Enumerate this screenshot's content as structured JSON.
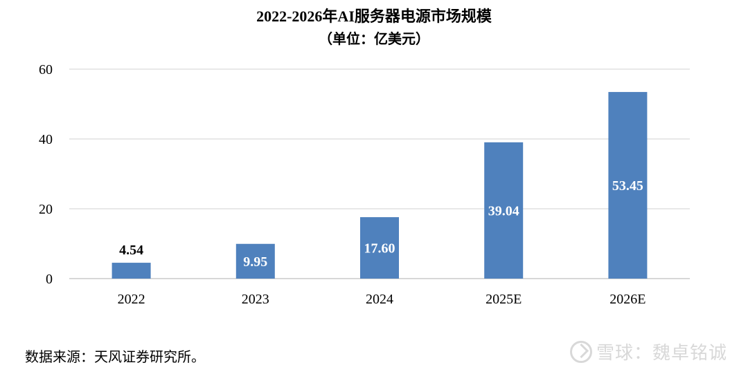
{
  "header": {
    "title": "2022-2026年AI服务器电源市场规模",
    "subtitle": "（单位：亿美元）"
  },
  "source_note": "数据来源：天风证券研究所。",
  "watermark": {
    "text": "雪球：魏卓铭诚",
    "icon": "snowball-icon"
  },
  "colors": {
    "bar": "#4f81bd",
    "grid": "#d9d9d9",
    "axis": "#bfbfbf"
  },
  "chart_data": {
    "type": "bar",
    "title": "2022-2026年AI服务器电源市场规模",
    "subtitle": "（单位：亿美元）",
    "categories": [
      "2022",
      "2023",
      "2024",
      "2025E",
      "2026E"
    ],
    "values": [
      4.54,
      9.95,
      17.6,
      39.04,
      53.45
    ],
    "value_labels": [
      "4.54",
      "9.95",
      "17.60",
      "39.04",
      "53.45"
    ],
    "ylim": [
      0,
      60
    ],
    "yticks": [
      0,
      20,
      40,
      60
    ],
    "xlabel": "",
    "ylabel": "",
    "grid": true,
    "legend": false
  }
}
